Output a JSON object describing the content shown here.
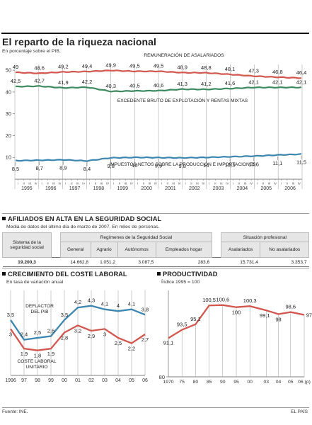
{
  "title": "El reparto de la riqueza nacional",
  "subtitle": "En porcentaje sobre el PIB.",
  "colors": {
    "red": "#d2574f",
    "green": "#3e8a5f",
    "blue": "#3d86b0",
    "grid": "#999999",
    "text": "#222222"
  },
  "chart_data": [
    {
      "type": "line",
      "title": "",
      "y_axis_ticks": [
        10,
        20,
        30,
        40,
        50
      ],
      "ylim": [
        0,
        52
      ],
      "x_quarter_ticks": [
        "I",
        "II",
        "III",
        "IV"
      ],
      "x_year_labels": [
        "1995",
        "1996",
        "1997",
        "1998",
        "1999",
        "2000",
        "2001",
        "2002",
        "2003",
        "2004",
        "2005",
        "2006"
      ],
      "series": [
        {
          "name": "REMUNERACIÓN DE ASALARIADOS",
          "color": "red",
          "values": [
            49.0,
            48.6,
            49.2,
            49.4,
            49.9,
            49.5,
            49.5,
            48.9,
            48.8,
            48.1,
            47.3,
            46.8,
            46.4
          ]
        },
        {
          "name": "EXCEDENTE BRUTO DE EXPLOTACIÓN Y RENTAS MIXTAS",
          "color": "green",
          "values": [
            42.5,
            42.7,
            41.9,
            42.2,
            40.3,
            40.5,
            40.6,
            41.3,
            41.2,
            41.6,
            42.1,
            42.1,
            42.1
          ]
        },
        {
          "name": "IMPUESTOS NETOS SOBRE LA PRODUCCIÓN E IMPORTACIONES",
          "color": "blue",
          "values": [
            8.5,
            8.7,
            8.9,
            8.4,
            9.8,
            10.0,
            9.9,
            9.8,
            10.0,
            10.3,
            10.6,
            11.1,
            11.5
          ]
        }
      ]
    },
    {
      "type": "line",
      "title": "CRECIMIENTO DEL COSTE LABORAL",
      "subtitle": "En tasa de variación anual",
      "categories": [
        "1996",
        "97",
        "98",
        "99",
        "00",
        "01",
        "02",
        "03",
        "04",
        "05",
        "06"
      ],
      "series": [
        {
          "name": "DEFLACTOR DEL PIB",
          "color": "blue",
          "values": [
            3.5,
            2.4,
            2.5,
            2.6,
            3.5,
            4.2,
            4.3,
            4.1,
            4.0,
            4.1,
            3.8
          ]
        },
        {
          "name": "COSTE LABORAL UNITARIO",
          "color": "red",
          "values": [
            3.0,
            1.9,
            1.8,
            1.9,
            2.8,
            3.2,
            2.9,
            3.0,
            2.5,
            2.2,
            2.7
          ]
        }
      ]
    },
    {
      "type": "line",
      "title": "PRODUCTIVIDAD",
      "subtitle": "Índice 1995 = 100",
      "y_tick": "80",
      "categories": [
        "1970",
        "75",
        "80",
        "85",
        "90",
        "95",
        "00",
        "03",
        "04",
        "05",
        "06 (p)"
      ],
      "values": [
        91.1,
        93.5,
        95.1,
        100.5,
        100.6,
        100.0,
        100.3,
        99.1,
        98.0,
        98.6,
        97.8
      ],
      "color": "red"
    }
  ],
  "afiliados": {
    "title": "AFILIADOS EN ALTA EN LA SEGURIDAD SOCIAL",
    "subtitle": "Media de datos del último día de marzo de 2007. En miles de personas.",
    "col_sistema": "Sistema de la seguridad social",
    "group_regimenes": "Regímenes de la Seguridad Social",
    "group_situacion": "Situación profesional",
    "headers": [
      "General",
      "Agrario",
      "Autónomos",
      "Empleados hogar",
      "Asalariados",
      "No asalariados"
    ],
    "values": [
      "19.200,3",
      "14.662,8",
      "1.051,2",
      "3.087,5",
      "283,6",
      "15.731,4",
      "3.353,7"
    ]
  },
  "footer": {
    "source": "Fuente: INE.",
    "brand": "EL PAÍS"
  }
}
